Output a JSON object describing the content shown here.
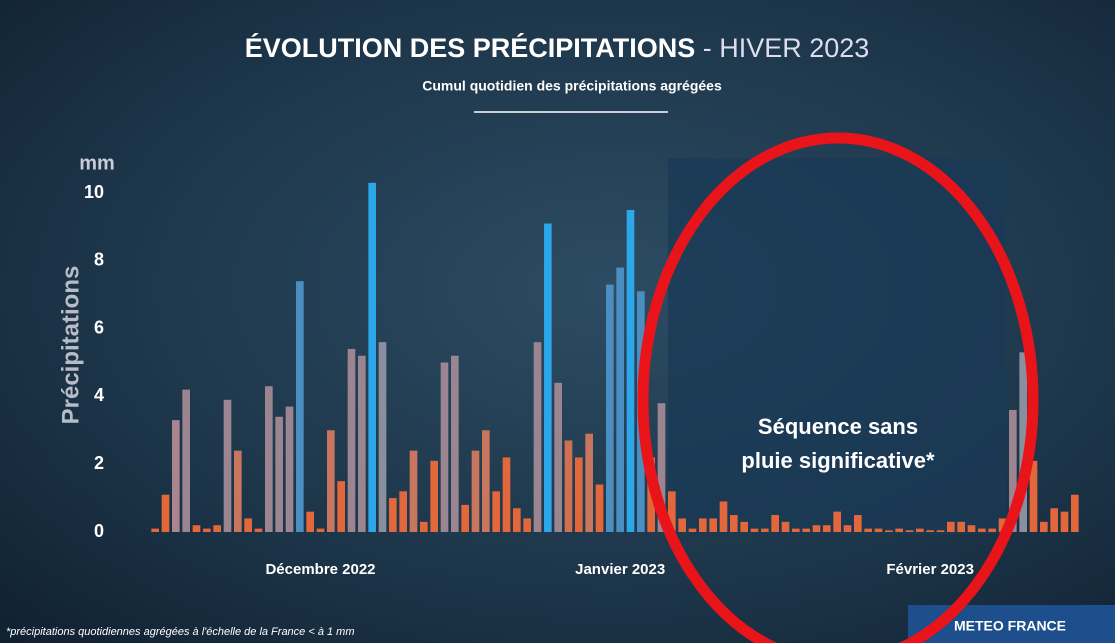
{
  "chart_data": {
    "type": "bar",
    "title": "ÉVOLUTION DES PRÉCIPITATIONS",
    "title_suffix": " - HIVER 2023",
    "subtitle": "Cumul quotidien des précipitations agrégées",
    "y_unit": "mm",
    "y_label": "Précipitations",
    "annotation": [
      "Séquence sans",
      "pluie significative*"
    ],
    "footnote": "*précipitations quotidiennes agrégées à l'échelle de la France < à 1 mm",
    "source": "METEO FRANCE",
    "categories": [
      null,
      null,
      null,
      null,
      null,
      null,
      null,
      null,
      null,
      null,
      null,
      null,
      null,
      null,
      null,
      null,
      "Décembre 2022",
      null,
      null,
      null,
      null,
      null,
      null,
      null,
      null,
      null,
      null,
      null,
      null,
      null,
      null,
      null,
      null,
      null,
      null,
      null,
      null,
      null,
      null,
      null,
      null,
      null,
      null,
      null,
      null,
      "Janvier 2023",
      null,
      null,
      null,
      null,
      null,
      null,
      null,
      null,
      null,
      null,
      null,
      null,
      null,
      null,
      null,
      null,
      null,
      null,
      null,
      null,
      null,
      null,
      null,
      null,
      null,
      null,
      null,
      null,
      null,
      "Février 2023",
      null,
      null,
      null,
      null,
      null,
      null,
      null,
      null,
      null,
      null,
      null,
      null,
      null,
      null
    ],
    "values": [
      0.1,
      1.1,
      3.3,
      4.2,
      0.2,
      0.1,
      0.2,
      3.9,
      2.4,
      0.4,
      0.1,
      4.3,
      3.4,
      3.7,
      7.4,
      0.6,
      0.1,
      3.0,
      1.5,
      5.4,
      5.2,
      10.3,
      5.6,
      1.0,
      1.2,
      2.4,
      0.3,
      2.1,
      5.0,
      5.2,
      0.8,
      2.4,
      3.0,
      1.2,
      2.2,
      0.7,
      0.4,
      5.6,
      9.1,
      4.4,
      2.7,
      2.2,
      2.9,
      1.4,
      7.3,
      7.8,
      9.5,
      7.1,
      2.2,
      3.8,
      1.2,
      0.4,
      0.1,
      0.4,
      0.4,
      0.9,
      0.5,
      0.3,
      0.1,
      0.1,
      0.5,
      0.3,
      0.1,
      0.1,
      0.2,
      0.2,
      0.6,
      0.2,
      0.5,
      0.1,
      0.1,
      0.05,
      0.1,
      0.05,
      0.1,
      0.05,
      0.05,
      0.3,
      0.3,
      0.2,
      0.1,
      0.1,
      0.4,
      3.6,
      5.3,
      2.1,
      0.3,
      0.7,
      0.6,
      1.1
    ],
    "colors": [
      "#e2683c",
      "#e2683c",
      "#a98590",
      "#9b8591",
      "#e2683c",
      "#e2683c",
      "#e2683c",
      "#9b8591",
      "#c9765e",
      "#e2683c",
      "#e2683c",
      "#9b8591",
      "#9b8591",
      "#9b8591",
      "#4b8fc2",
      "#e2683c",
      "#e2683c",
      "#c9765e",
      "#e2683c",
      "#9b8591",
      "#9b8591",
      "#2ba7ea",
      "#8a8fa0",
      "#e2683c",
      "#e2683c",
      "#c9765e",
      "#e2683c",
      "#e2683c",
      "#9b8591",
      "#9b8591",
      "#e2683c",
      "#c9765e",
      "#c9765e",
      "#e2683c",
      "#e2683c",
      "#e2683c",
      "#e2683c",
      "#9b8591",
      "#2ba7ea",
      "#9b8591",
      "#d06f52",
      "#e2683c",
      "#c9765e",
      "#e2683c",
      "#4b8fc2",
      "#4b8fc2",
      "#2ba7ea",
      "#4b8fc2",
      "#e2683c",
      "#9b8591",
      "#e2683c",
      "#e2683c",
      "#e2683c",
      "#e2683c",
      "#e2683c",
      "#e2683c",
      "#e2683c",
      "#e2683c",
      "#e2683c",
      "#e2683c",
      "#e2683c",
      "#e2683c",
      "#e2683c",
      "#e2683c",
      "#e2683c",
      "#e2683c",
      "#e2683c",
      "#e2683c",
      "#e2683c",
      "#e2683c",
      "#e2683c",
      "#e2683c",
      "#e2683c",
      "#e2683c",
      "#e2683c",
      "#e2683c",
      "#e2683c",
      "#e2683c",
      "#e2683c",
      "#e2683c",
      "#e2683c",
      "#e2683c",
      "#e2683c",
      "#9b8591",
      "#8a8fa0",
      "#e2683c",
      "#e2683c",
      "#e2683c",
      "#e2683c",
      "#e2683c"
    ],
    "ylim": [
      0,
      10
    ],
    "yticks": [
      0,
      2,
      4,
      6,
      8,
      10
    ]
  }
}
